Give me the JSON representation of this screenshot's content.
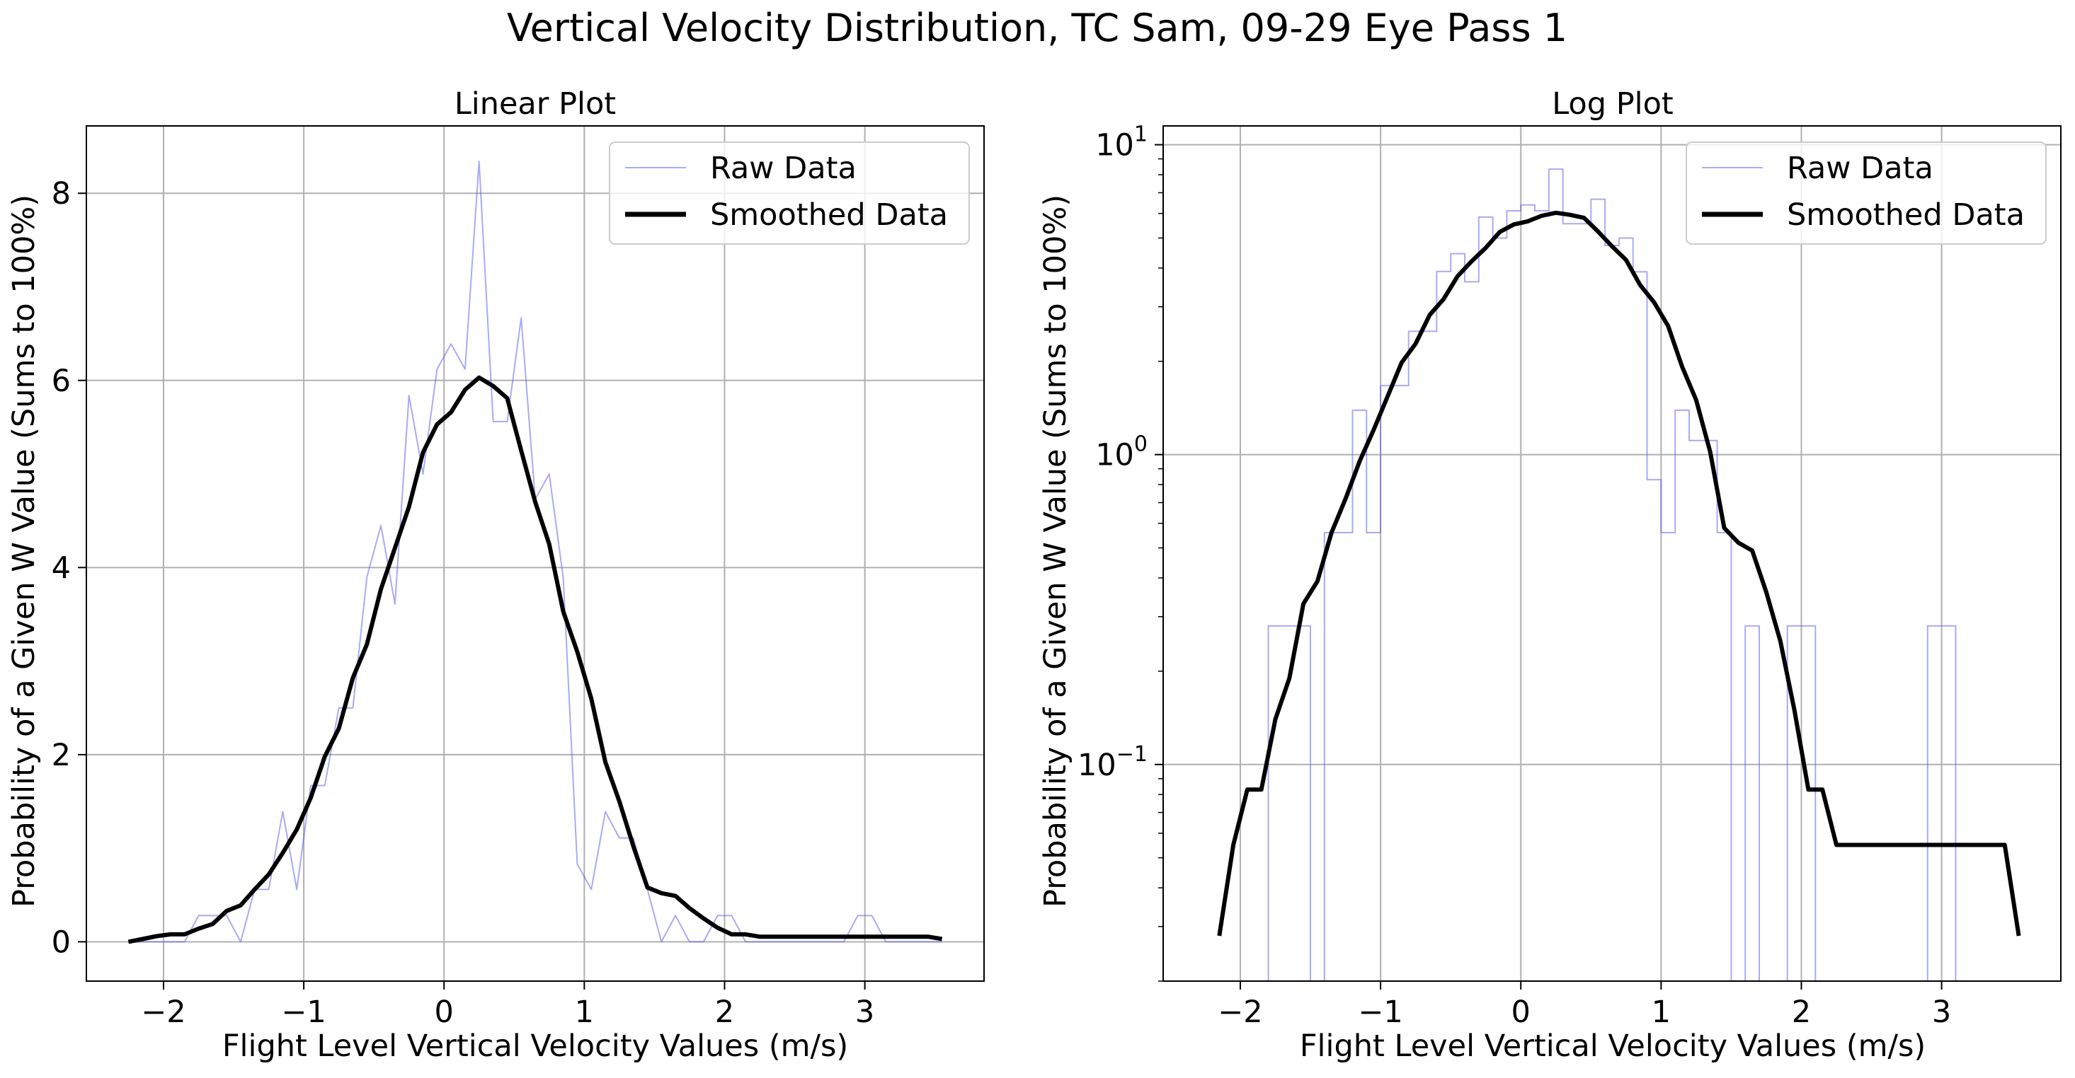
{
  "figure": {
    "suptitle": "Vertical Velocity Distribution, TC Sam, 09-29 Eye Pass 1"
  },
  "legend": {
    "raw": "Raw Data",
    "smoothed": "Smoothed Data"
  },
  "colors": {
    "raw": "#5555ee",
    "smoothed": "#000000",
    "grid": "#b0b0b0",
    "axes": "#000000"
  },
  "chart_data": [
    {
      "type": "line",
      "title": "Linear Plot",
      "xlabel": "Flight Level Vertical Velocity Values (m/s)",
      "ylabel": "Probability of a Given W Value (Sums to 100%)",
      "xlim": [
        -2.55,
        3.85
      ],
      "ylim": [
        -0.42,
        8.72
      ],
      "yscale": "linear",
      "xticks": [
        -2,
        -1,
        0,
        1,
        2,
        3
      ],
      "xtick_labels": [
        "−2",
        "−1",
        "0",
        "1",
        "2",
        "3"
      ],
      "yticks": [
        0,
        2,
        4,
        6,
        8
      ],
      "ytick_labels": [
        "0",
        "2",
        "4",
        "6",
        "8"
      ],
      "grid": true,
      "legend_position": "upper right",
      "series": [
        {
          "name": "Raw Data",
          "x": [
            -2.25,
            -2.15,
            -2.05,
            -1.95,
            -1.85,
            -1.75,
            -1.65,
            -1.55,
            -1.45,
            -1.35,
            -1.25,
            -1.15,
            -1.05,
            -0.95,
            -0.85,
            -0.75,
            -0.65,
            -0.55,
            -0.45,
            -0.35,
            -0.25,
            -0.15,
            -0.05,
            0.05,
            0.15,
            0.25,
            0.35,
            0.45,
            0.55,
            0.65,
            0.75,
            0.85,
            0.95,
            1.05,
            1.15,
            1.25,
            1.35,
            1.45,
            1.55,
            1.65,
            1.75,
            1.85,
            1.95,
            2.05,
            2.15,
            2.25,
            2.35,
            2.45,
            2.55,
            2.65,
            2.75,
            2.85,
            2.95,
            3.05,
            3.15,
            3.25,
            3.35,
            3.45,
            3.55
          ],
          "values": [
            0,
            0,
            0,
            0,
            0,
            0.28,
            0.28,
            0.28,
            0,
            0.56,
            0.56,
            1.39,
            0.56,
            1.67,
            1.67,
            2.5,
            2.5,
            3.9,
            4.45,
            3.61,
            5.84,
            5.0,
            6.12,
            6.39,
            6.12,
            8.34,
            5.56,
            5.56,
            6.67,
            4.73,
            5.0,
            3.89,
            0.83,
            0.56,
            1.39,
            1.11,
            1.11,
            0.56,
            0,
            0.28,
            0,
            0,
            0.28,
            0.28,
            0,
            0,
            0,
            0,
            0,
            0,
            0,
            0,
            0.28,
            0.28,
            0,
            0,
            0,
            0,
            0
          ]
        },
        {
          "name": "Smoothed Data",
          "x": [
            -2.25,
            -2.15,
            -2.05,
            -1.95,
            -1.85,
            -1.75,
            -1.65,
            -1.55,
            -1.45,
            -1.35,
            -1.25,
            -1.15,
            -1.05,
            -0.95,
            -0.85,
            -0.75,
            -0.65,
            -0.55,
            -0.45,
            -0.35,
            -0.25,
            -0.15,
            -0.05,
            0.05,
            0.15,
            0.25,
            0.35,
            0.45,
            0.55,
            0.65,
            0.75,
            0.85,
            0.95,
            1.05,
            1.15,
            1.25,
            1.35,
            1.45,
            1.55,
            1.65,
            1.75,
            1.85,
            1.95,
            2.05,
            2.15,
            2.25,
            2.35,
            2.45,
            2.55,
            2.65,
            2.75,
            2.85,
            2.95,
            3.05,
            3.15,
            3.25,
            3.35,
            3.45,
            3.55
          ],
          "values": [
            0.0,
            0.03,
            0.06,
            0.08,
            0.08,
            0.14,
            0.19,
            0.33,
            0.39,
            0.56,
            0.72,
            0.95,
            1.2,
            1.54,
            1.98,
            2.28,
            2.82,
            3.18,
            3.77,
            4.21,
            4.65,
            5.23,
            5.53,
            5.66,
            5.9,
            6.03,
            5.94,
            5.81,
            5.25,
            4.7,
            4.25,
            3.53,
            3.1,
            2.6,
            1.92,
            1.5,
            1.02,
            0.58,
            0.52,
            0.49,
            0.36,
            0.25,
            0.15,
            0.08,
            0.08,
            0.055,
            0.055,
            0.055,
            0.055,
            0.055,
            0.055,
            0.055,
            0.055,
            0.055,
            0.055,
            0.055,
            0.055,
            0.055,
            0.03
          ]
        }
      ]
    },
    {
      "type": "line",
      "title": "Log Plot",
      "xlabel": "Flight Level Vertical Velocity Values (m/s)",
      "ylabel": "Probability of a Given W Value (Sums to 100%)",
      "xlim": [
        -2.55,
        3.85
      ],
      "ylim": [
        0.02,
        11.5
      ],
      "yscale": "log",
      "xticks": [
        -2,
        -1,
        0,
        1,
        2,
        3
      ],
      "xtick_labels": [
        "−2",
        "−1",
        "0",
        "1",
        "2",
        "3"
      ],
      "yticks": [
        0.1,
        1,
        10
      ],
      "ytick_labels": [
        {
          "base": "10",
          "exp": "−1"
        },
        {
          "base": "10",
          "exp": "0"
        },
        {
          "base": "10",
          "exp": "1"
        }
      ],
      "grid": true,
      "legend_position": "upper right",
      "series": [
        {
          "name": "Raw Data",
          "x": [
            -2.25,
            -2.15,
            -2.05,
            -1.95,
            -1.85,
            -1.75,
            -1.65,
            -1.55,
            -1.45,
            -1.35,
            -1.25,
            -1.15,
            -1.05,
            -0.95,
            -0.85,
            -0.75,
            -0.65,
            -0.55,
            -0.45,
            -0.35,
            -0.25,
            -0.15,
            -0.05,
            0.05,
            0.15,
            0.25,
            0.35,
            0.45,
            0.55,
            0.65,
            0.75,
            0.85,
            0.95,
            1.05,
            1.15,
            1.25,
            1.35,
            1.45,
            1.55,
            1.65,
            1.75,
            1.85,
            1.95,
            2.05,
            2.15,
            2.25,
            2.35,
            2.45,
            2.55,
            2.65,
            2.75,
            2.85,
            2.95,
            3.05,
            3.15,
            3.25,
            3.35,
            3.45,
            3.55
          ],
          "values": [
            0,
            0,
            0,
            0,
            0,
            0.28,
            0.28,
            0.28,
            0,
            0.56,
            0.56,
            1.39,
            0.56,
            1.67,
            1.67,
            2.5,
            2.5,
            3.9,
            4.45,
            3.61,
            5.84,
            5.0,
            6.12,
            6.39,
            6.12,
            8.34,
            5.56,
            5.56,
            6.67,
            4.73,
            5.0,
            3.89,
            0.83,
            0.56,
            1.39,
            1.11,
            1.11,
            0.56,
            0,
            0.28,
            0,
            0,
            0.28,
            0.28,
            0,
            0,
            0,
            0,
            0,
            0,
            0,
            0,
            0.28,
            0.28,
            0,
            0,
            0,
            0,
            0
          ]
        },
        {
          "name": "Smoothed Data",
          "x": [
            -2.15,
            -2.05,
            -1.95,
            -1.85,
            -1.75,
            -1.65,
            -1.55,
            -1.45,
            -1.35,
            -1.25,
            -1.15,
            -1.05,
            -0.95,
            -0.85,
            -0.75,
            -0.65,
            -0.55,
            -0.45,
            -0.35,
            -0.25,
            -0.15,
            -0.05,
            0.05,
            0.15,
            0.25,
            0.35,
            0.45,
            0.55,
            0.65,
            0.75,
            0.85,
            0.95,
            1.05,
            1.15,
            1.25,
            1.35,
            1.45,
            1.55,
            1.65,
            1.75,
            1.85,
            1.95,
            2.05,
            2.15,
            2.25,
            2.35,
            2.45,
            2.55,
            2.65,
            2.75,
            2.85,
            2.95,
            3.05,
            3.15,
            3.25,
            3.35,
            3.45,
            3.55
          ],
          "values": [
            0.028,
            0.055,
            0.083,
            0.083,
            0.14,
            0.19,
            0.33,
            0.39,
            0.56,
            0.72,
            0.95,
            1.2,
            1.54,
            1.98,
            2.28,
            2.82,
            3.18,
            3.77,
            4.21,
            4.65,
            5.23,
            5.53,
            5.66,
            5.9,
            6.03,
            5.94,
            5.81,
            5.25,
            4.7,
            4.25,
            3.53,
            3.1,
            2.6,
            1.92,
            1.5,
            1.02,
            0.58,
            0.52,
            0.49,
            0.36,
            0.25,
            0.15,
            0.083,
            0.083,
            0.055,
            0.055,
            0.055,
            0.055,
            0.055,
            0.055,
            0.055,
            0.055,
            0.055,
            0.055,
            0.055,
            0.055,
            0.055,
            0.028
          ]
        }
      ]
    }
  ]
}
